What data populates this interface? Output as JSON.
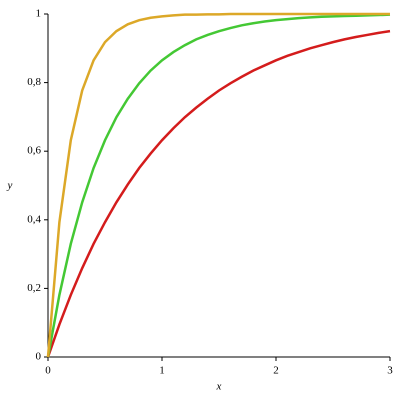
{
  "chart_data": {
    "type": "line",
    "x_label": "x",
    "y_label": "y",
    "x": [
      0,
      0.1,
      0.2,
      0.3,
      0.4,
      0.5,
      0.6,
      0.7,
      0.8,
      0.9,
      1,
      1.1,
      1.2,
      1.3,
      1.4,
      1.5,
      1.6,
      1.7,
      1.8,
      1.9,
      2,
      2.1,
      2.2,
      2.3,
      2.4,
      2.5,
      2.6,
      2.7,
      2.8,
      2.9,
      3
    ],
    "series": [
      {
        "color": "#d41c1c",
        "values": [
          0,
          0.095,
          0.181,
          0.259,
          0.33,
          0.393,
          0.451,
          0.503,
          0.551,
          0.593,
          0.632,
          0.667,
          0.699,
          0.727,
          0.753,
          0.777,
          0.798,
          0.817,
          0.835,
          0.85,
          0.865,
          0.878,
          0.889,
          0.9,
          0.909,
          0.918,
          0.926,
          0.933,
          0.939,
          0.945,
          0.95
        ]
      },
      {
        "color": "#44c834",
        "values": [
          0,
          0.181,
          0.33,
          0.451,
          0.551,
          0.632,
          0.699,
          0.753,
          0.798,
          0.835,
          0.865,
          0.889,
          0.909,
          0.926,
          0.939,
          0.95,
          0.959,
          0.967,
          0.973,
          0.978,
          0.982,
          0.985,
          0.988,
          0.99,
          0.992,
          0.993,
          0.994,
          0.995,
          0.996,
          0.997,
          0.998
        ]
      },
      {
        "color": "#dca828",
        "values": [
          0,
          0.393,
          0.632,
          0.777,
          0.865,
          0.918,
          0.95,
          0.97,
          0.982,
          0.989,
          0.993,
          0.996,
          0.998,
          0.998,
          0.999,
          0.999,
          1,
          1,
          1,
          1,
          1,
          1,
          1,
          1,
          1,
          1,
          1,
          1,
          1,
          1,
          1
        ]
      }
    ],
    "xlim": [
      0,
      3
    ],
    "xticks": [
      0,
      1,
      2,
      3
    ],
    "ylim": [
      0,
      1
    ],
    "yticks": [
      0,
      {
        "value": 0.2,
        "label": "0,2"
      },
      {
        "value": 0.4,
        "label": "0,4"
      },
      {
        "value": 0.6,
        "label": "0,6"
      },
      {
        "value": 0.8,
        "label": "0,8"
      },
      1
    ]
  }
}
